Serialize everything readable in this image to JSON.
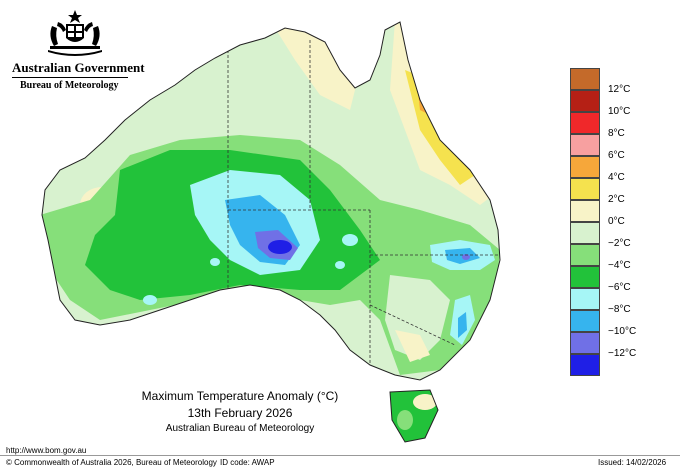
{
  "header": {
    "government": "Australian Government",
    "bureau": "Bureau of Meteorology"
  },
  "map": {
    "title": "Maximum Temperature Anomaly (°C)",
    "date": "13th February 2026",
    "source": "Australian Bureau of Meteorology"
  },
  "legend": {
    "items": [
      {
        "label": "12°C",
        "color": "#c46a2a"
      },
      {
        "label": "10°C",
        "color": "#b52015"
      },
      {
        "label": "8°C",
        "color": "#f0282a"
      },
      {
        "label": "6°C",
        "color": "#f7a0a0"
      },
      {
        "label": "4°C",
        "color": "#f6a73a"
      },
      {
        "label": "2°C",
        "color": "#f5e24e"
      },
      {
        "label": "0°C",
        "color": "#f8f3c8"
      },
      {
        "label": "−2°C",
        "color": "#d8f2cf"
      },
      {
        "label": "−4°C",
        "color": "#86df7a"
      },
      {
        "label": "−6°C",
        "color": "#22c23a"
      },
      {
        "label": "−8°C",
        "color": "#a6f6f6"
      },
      {
        "label": "−10°C",
        "color": "#36b4ee"
      },
      {
        "label": "−12°C",
        "color": "#7070e6"
      },
      {
        "label": "",
        "color": "#1f1fe6"
      }
    ]
  },
  "footer": {
    "url": "http://www.bom.gov.au",
    "copyright": "© Commonwealth of Australia 2026, Bureau of Meteorology",
    "id_code": "ID code: AWAP",
    "issued": "Issued: 14/02/2026"
  }
}
